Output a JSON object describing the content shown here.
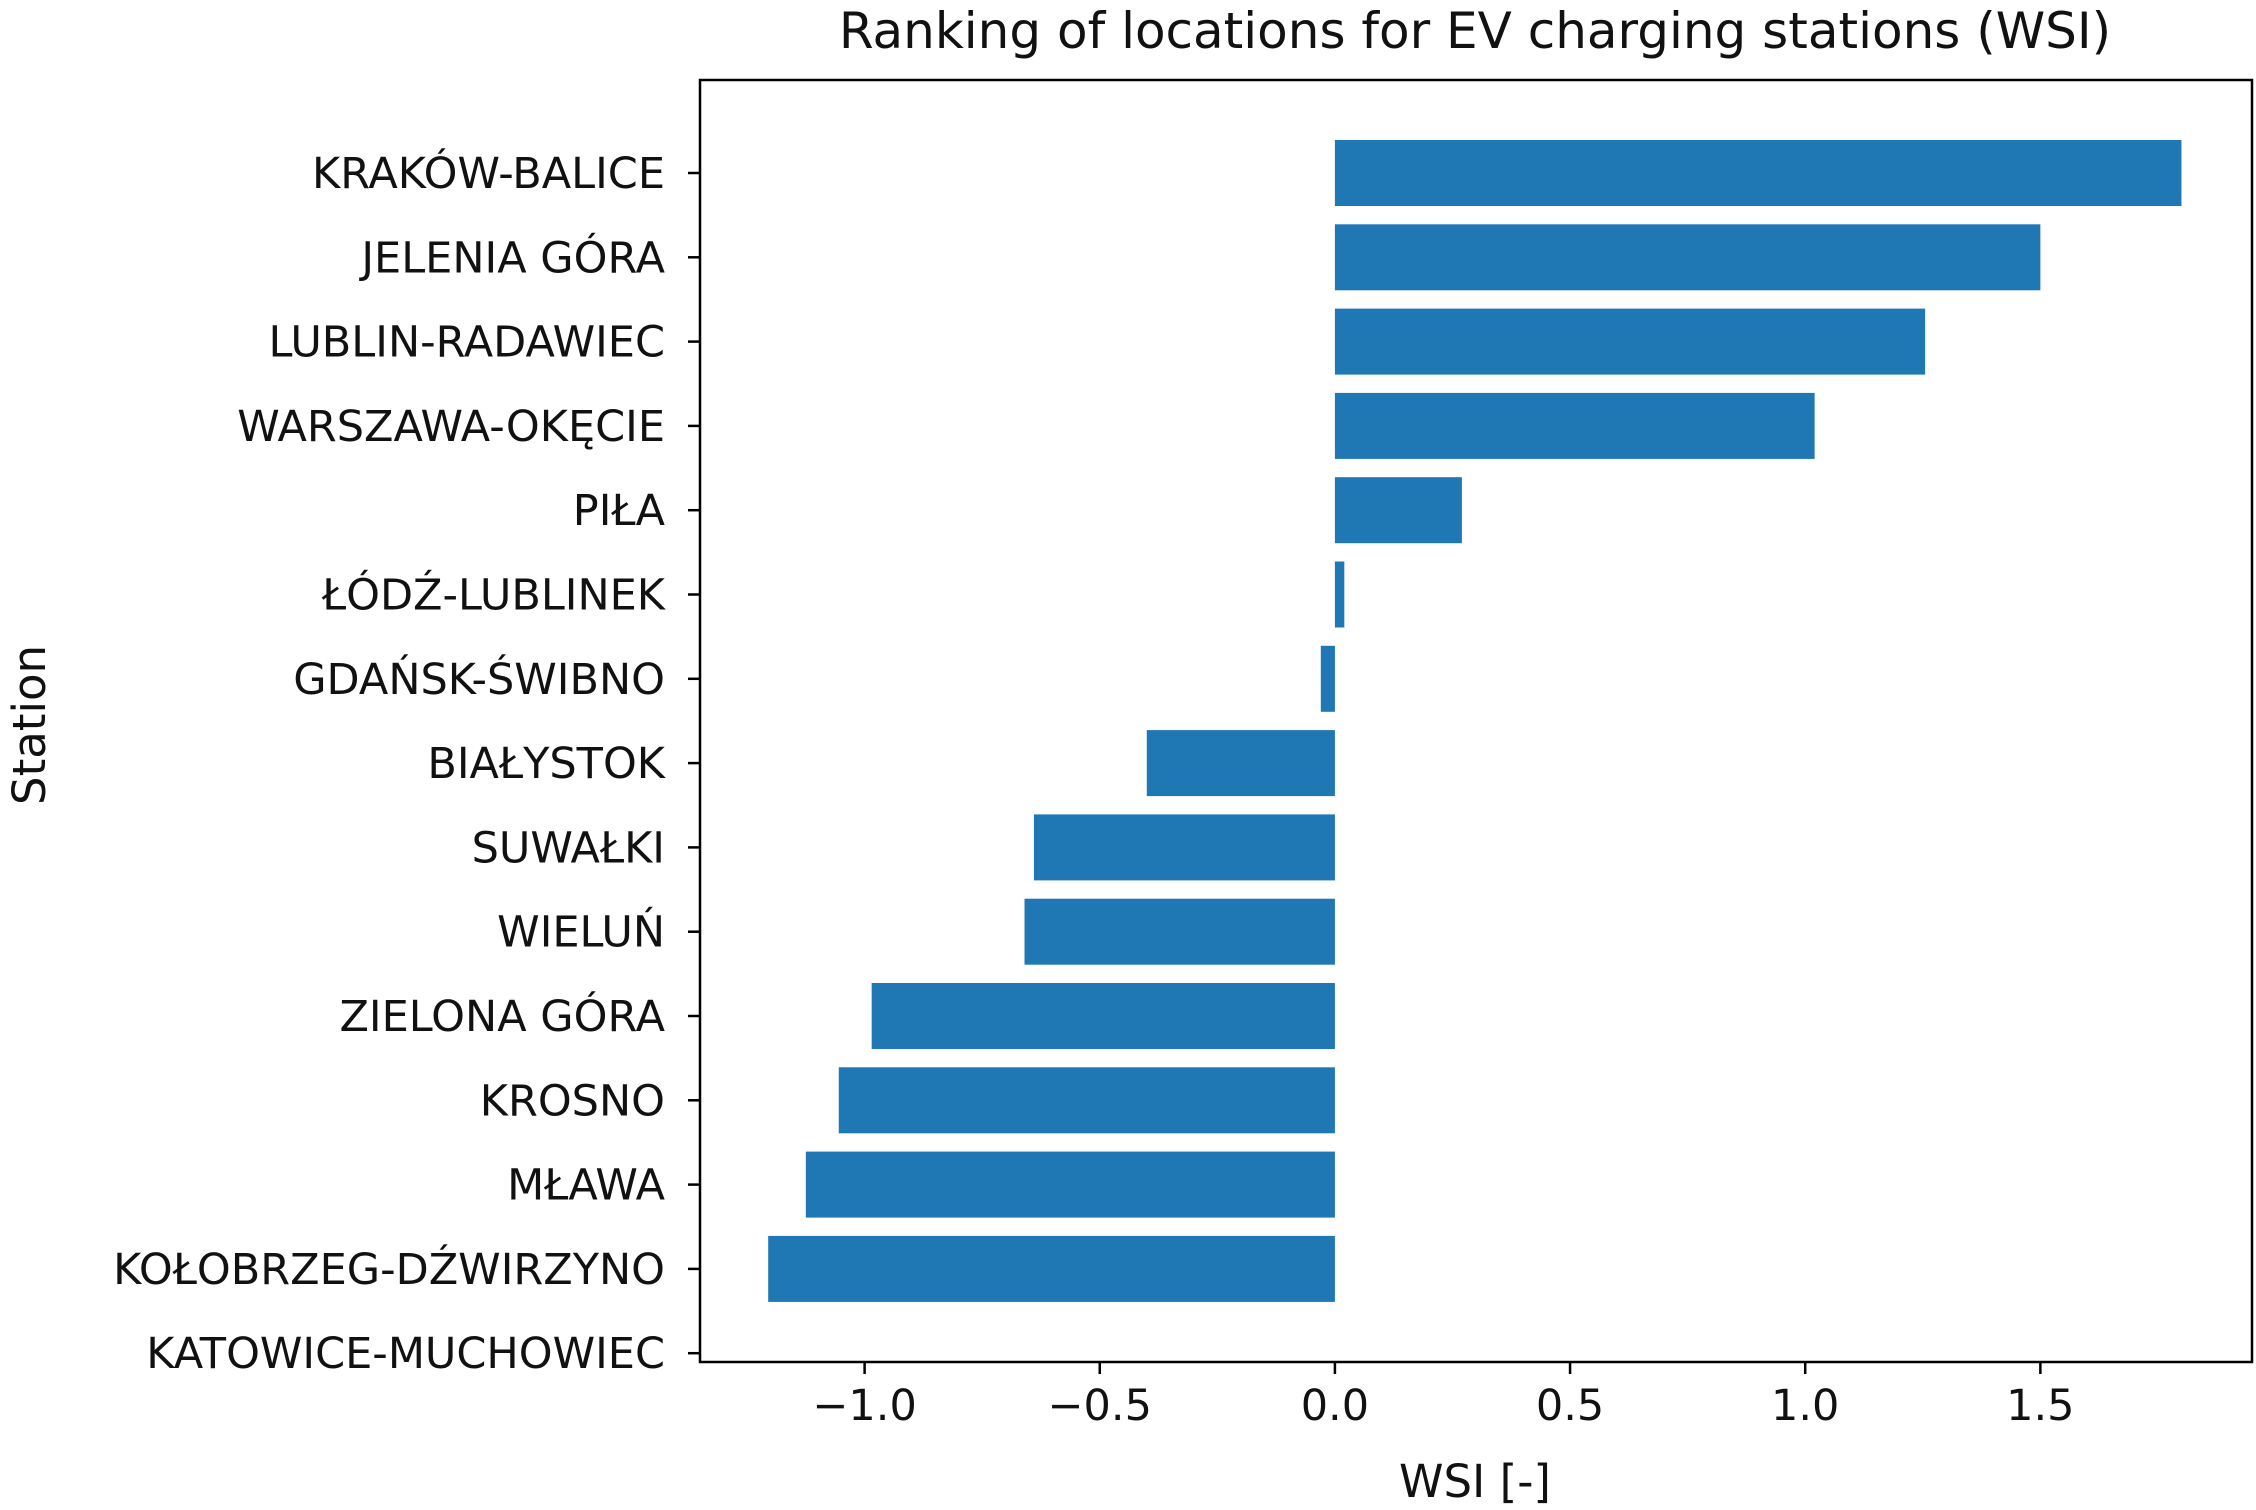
{
  "chart_data": {
    "type": "bar",
    "orientation": "horizontal",
    "title": "Ranking of locations for EV charging stations (WSI)",
    "xlabel": "WSI [-]",
    "ylabel": "Station",
    "xlim": [
      -1.35,
      1.95
    ],
    "xticks": [
      -1.0,
      -0.5,
      0.0,
      0.5,
      1.0,
      1.5
    ],
    "xtick_labels": [
      "−1.0",
      "−0.5",
      "0.0",
      "0.5",
      "1.0",
      "1.5"
    ],
    "grid": false,
    "bar_color": "#1f77b4",
    "categories": [
      "KRAKÓW-BALICE",
      "JELENIA GÓRA",
      "LUBLIN-RADAWIEC",
      "WARSZAWA-OKĘCIE",
      "PIŁA",
      "ŁÓDŹ-LUBLINEK",
      "GDAŃSK-ŚWIBNO",
      "BIAŁYSTOK",
      "SUWAŁKI",
      "WIELUŃ",
      "ZIELONA GÓRA",
      "KROSNO",
      "MŁAWA",
      "KOŁOBRZEG-DŹWIRZYNO",
      "KATOWICE-MUCHOWIEC"
    ],
    "values": [
      1.8,
      1.5,
      1.255,
      1.02,
      0.27,
      0.02,
      -0.03,
      -0.4,
      -0.64,
      -0.66,
      -0.985,
      -1.055,
      -1.125,
      -1.205,
      0.0
    ]
  }
}
